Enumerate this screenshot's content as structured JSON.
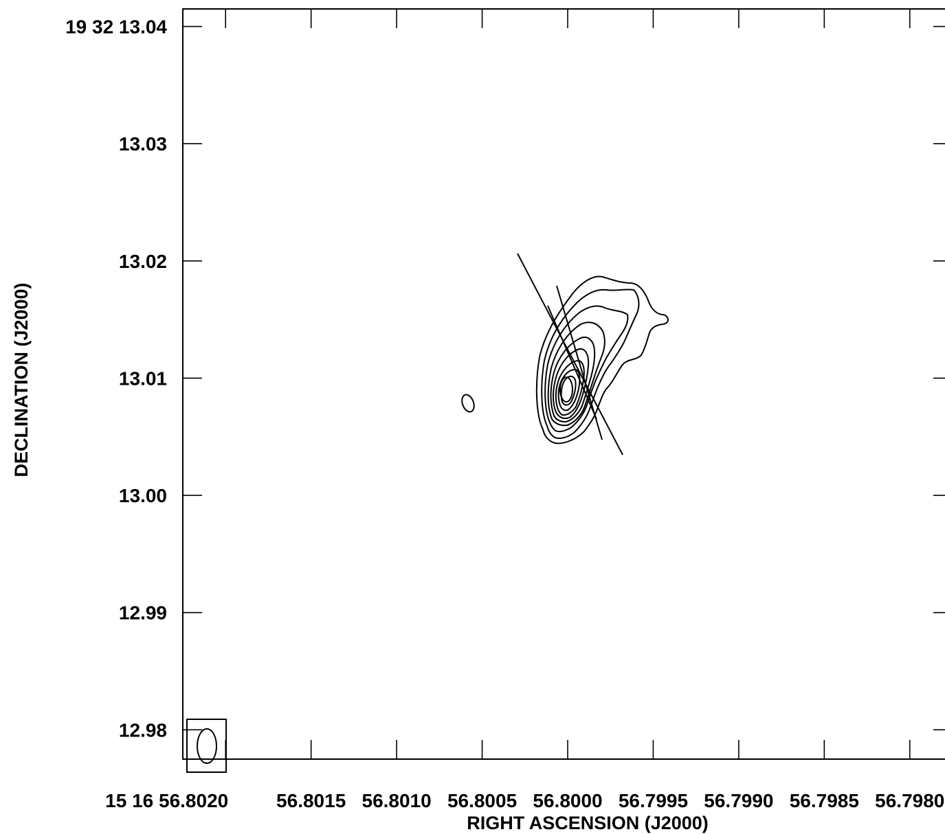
{
  "chart_data": {
    "type": "contour",
    "xlabel": "RIGHT ASCENSION (J2000)",
    "ylabel": "DECLINATION (J2000)",
    "x_ticks": [
      {
        "value": 56.802,
        "label": "15 16 56.8020"
      },
      {
        "value": 56.8015,
        "label": "56.8015"
      },
      {
        "value": 56.801,
        "label": "56.8010"
      },
      {
        "value": 56.8005,
        "label": "56.8005"
      },
      {
        "value": 56.8,
        "label": "56.8000"
      },
      {
        "value": 56.7995,
        "label": "56.7995"
      },
      {
        "value": 56.799,
        "label": "56.7990"
      },
      {
        "value": 56.7985,
        "label": "56.7985"
      },
      {
        "value": 56.798,
        "label": "56.7980"
      }
    ],
    "y_ticks": [
      {
        "value": 13.04,
        "label": "19 32 13.04"
      },
      {
        "value": 13.03,
        "label": "13.03"
      },
      {
        "value": 13.02,
        "label": "13.02"
      },
      {
        "value": 13.01,
        "label": "13.01"
      },
      {
        "value": 13.0,
        "label": "13.00"
      },
      {
        "value": 12.99,
        "label": "12.99"
      },
      {
        "value": 12.98,
        "label": "12.98"
      }
    ],
    "xlim": [
      56.80225,
      56.79775
    ],
    "ylim": [
      12.9775,
      13.0415
    ],
    "peak": {
      "ra": 56.7999,
      "dec": 13.01
    },
    "source_extent": {
      "ra": [
        56.8002,
        56.7994
      ],
      "dec": [
        13.0057,
        13.0195
      ]
    },
    "weak_component": {
      "ra": 56.80058,
      "dec": 13.0088
    },
    "beam": {
      "ra": 56.80209,
      "dec": 12.9803
    }
  }
}
